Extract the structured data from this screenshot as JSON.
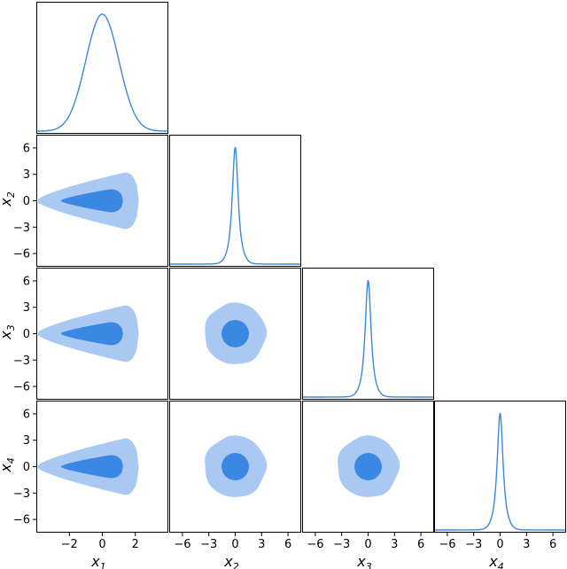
{
  "chart_data": {
    "type": "corner",
    "parameters": [
      {
        "name": "x",
        "subscript": "1"
      },
      {
        "name": "x",
        "subscript": "2"
      },
      {
        "name": "x",
        "subscript": "3"
      },
      {
        "name": "x",
        "subscript": "4"
      }
    ],
    "ranges": [
      [
        -4,
        4
      ],
      [
        -7.5,
        7.5
      ],
      [
        -7.5,
        7.5
      ],
      [
        -7.5,
        7.5
      ]
    ],
    "ticks": [
      [
        -2,
        0,
        2
      ],
      [
        -6,
        -3,
        0,
        3,
        6
      ],
      [
        -6,
        -3,
        0,
        3,
        6
      ],
      [
        -6,
        -3,
        0,
        3,
        6
      ]
    ],
    "tick_labels": [
      [
        "−2",
        "0",
        "2"
      ],
      [
        "−6",
        "−3",
        "0",
        "3",
        "6"
      ],
      [
        "−6",
        "−3",
        "0",
        "3",
        "6"
      ],
      [
        "−6",
        "−3",
        "0",
        "3",
        "6"
      ]
    ],
    "marginals": [
      {
        "param": 0,
        "shape": "gaussian",
        "mean": 0,
        "sigma": 1.0
      },
      {
        "param": 1,
        "shape": "heavy-tailed",
        "mode": 0,
        "scale": 0.55
      },
      {
        "param": 2,
        "shape": "heavy-tailed",
        "mode": 0,
        "scale": 0.55
      },
      {
        "param": 3,
        "shape": "heavy-tailed",
        "mode": 0,
        "scale": 0.55
      }
    ],
    "contours": [
      {
        "row": 1,
        "col": 0,
        "shape": "funnel",
        "levels": [
          "68%",
          "95%"
        ]
      },
      {
        "row": 2,
        "col": 0,
        "shape": "funnel",
        "levels": [
          "68%",
          "95%"
        ]
      },
      {
        "row": 3,
        "col": 0,
        "shape": "funnel",
        "levels": [
          "68%",
          "95%"
        ]
      },
      {
        "row": 2,
        "col": 1,
        "shape": "circular",
        "radii": [
          1.55,
          3.5
        ]
      },
      {
        "row": 3,
        "col": 1,
        "shape": "circular",
        "radii": [
          1.55,
          3.5
        ]
      },
      {
        "row": 3,
        "col": 2,
        "shape": "circular",
        "radii": [
          1.55,
          3.5
        ]
      }
    ],
    "colors": {
      "line": "#3a88e0",
      "inner_fill": "#3b87e4",
      "outer_fill": "#a9c9f2",
      "frame": "#000000"
    },
    "grid": false,
    "legend": "none"
  }
}
